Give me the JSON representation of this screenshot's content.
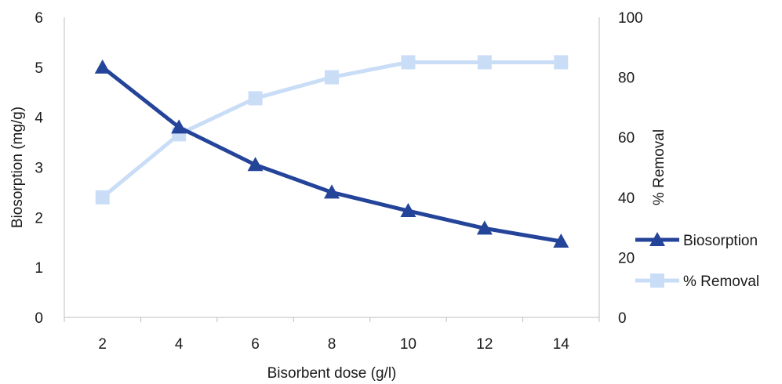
{
  "chart_data": {
    "type": "line",
    "x": [
      2,
      4,
      6,
      8,
      10,
      12,
      14
    ],
    "xlabel": "Bisorbent dose (g/l)",
    "ylabel": "Biosorption (mg/g)",
    "y2label": "% Removal",
    "ylim": [
      0,
      6
    ],
    "y2lim": [
      0,
      100
    ],
    "yticks": [
      0,
      1,
      2,
      3,
      4,
      5,
      6
    ],
    "y2ticks": [
      0,
      20,
      40,
      60,
      80,
      100
    ],
    "grid": false,
    "legend_position": "right",
    "series": [
      {
        "name": "Biosorption",
        "axis": "left",
        "marker": "triangle",
        "color": "#24449a",
        "values": [
          5.0,
          3.8,
          3.05,
          2.5,
          2.13,
          1.78,
          1.52
        ]
      },
      {
        "name": "% Removal",
        "axis": "right",
        "marker": "square",
        "color": "#c9ddf7",
        "values": [
          40,
          61,
          73,
          80,
          85,
          85,
          85
        ]
      }
    ]
  }
}
